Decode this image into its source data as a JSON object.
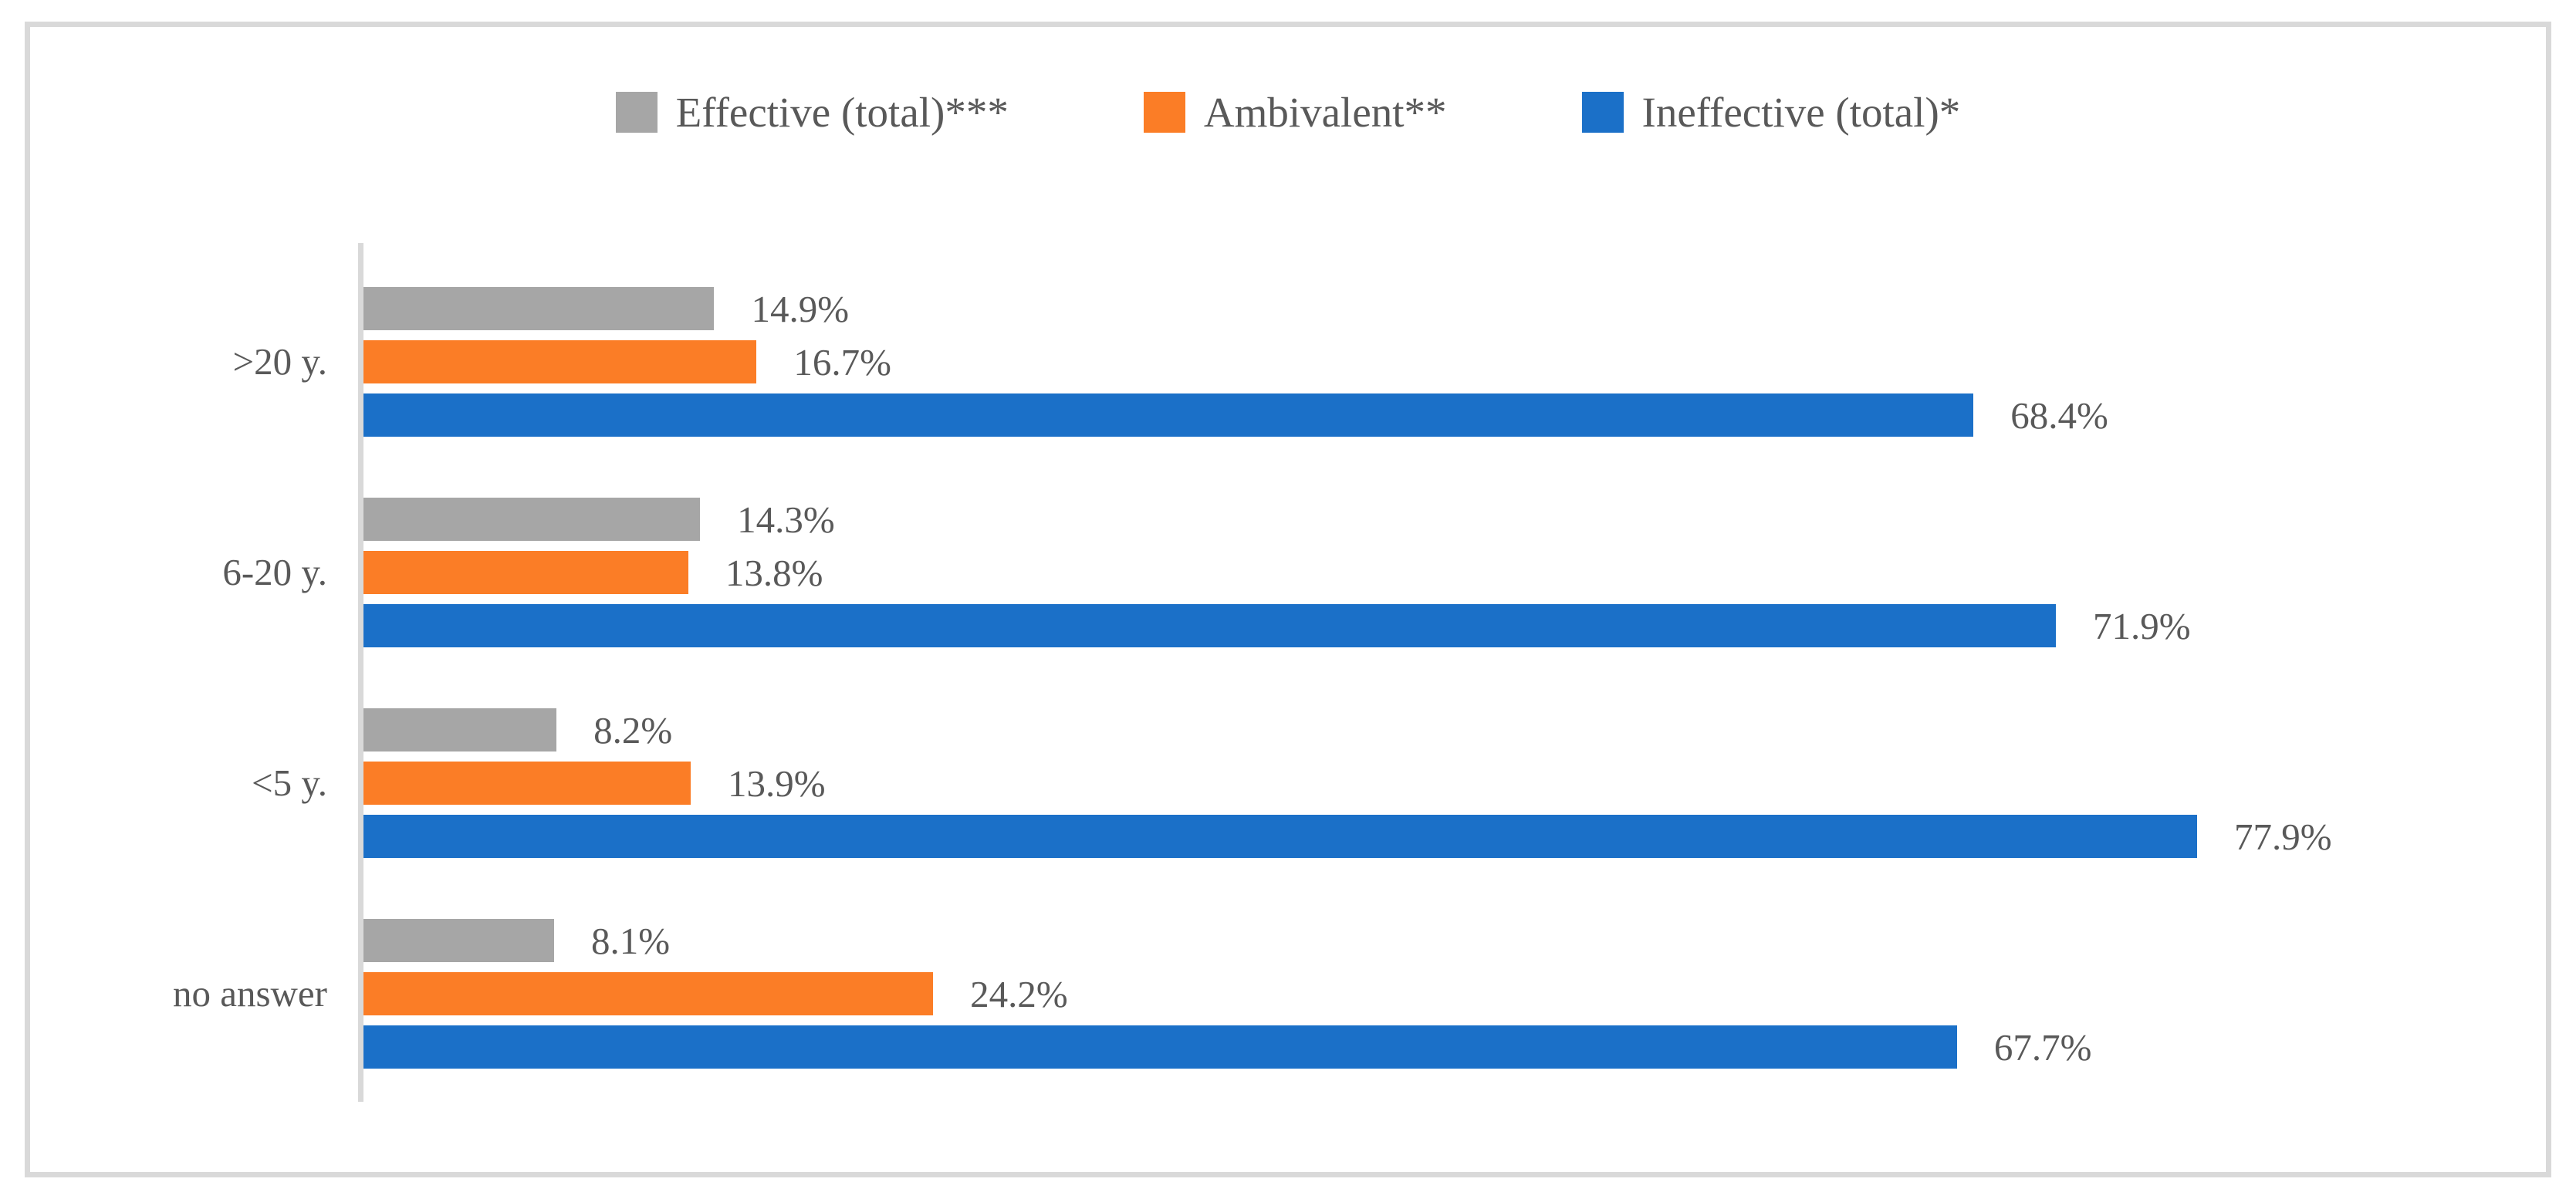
{
  "figure": {
    "background": "#FFFFFF",
    "frame_border_color": "#D9D9D9",
    "axis_line_color": "#D9D9D9",
    "text_color": "#595959"
  },
  "chart_data": {
    "type": "bar",
    "orientation": "horizontal",
    "title": "",
    "xlabel": "",
    "ylabel": "",
    "categories": [
      ">20 y.",
      "6-20 y.",
      "<5 y.",
      "no answer"
    ],
    "series": [
      {
        "name": "Effective (total)***",
        "color": "#A6A6A6",
        "values": [
          14.9,
          14.3,
          8.2,
          8.1
        ]
      },
      {
        "name": "Ambivalent**",
        "color": "#FB7D26",
        "values": [
          16.7,
          13.8,
          13.9,
          24.2
        ]
      },
      {
        "name": "Ineffective (total)*",
        "color": "#1B70C8",
        "values": [
          68.4,
          71.9,
          77.9,
          67.7
        ]
      }
    ],
    "labels": [
      [
        "14.9%",
        "16.7%",
        "68.4%"
      ],
      [
        "14.3%",
        "13.8%",
        "71.9%"
      ],
      [
        "8.2%",
        "13.9%",
        "77.9%"
      ],
      [
        "8.1%",
        "24.2%",
        "67.7%"
      ]
    ],
    "value_suffix": "%",
    "xlim": [
      0,
      90
    ],
    "grid": false,
    "legend_position": "top",
    "data_labels": true
  }
}
